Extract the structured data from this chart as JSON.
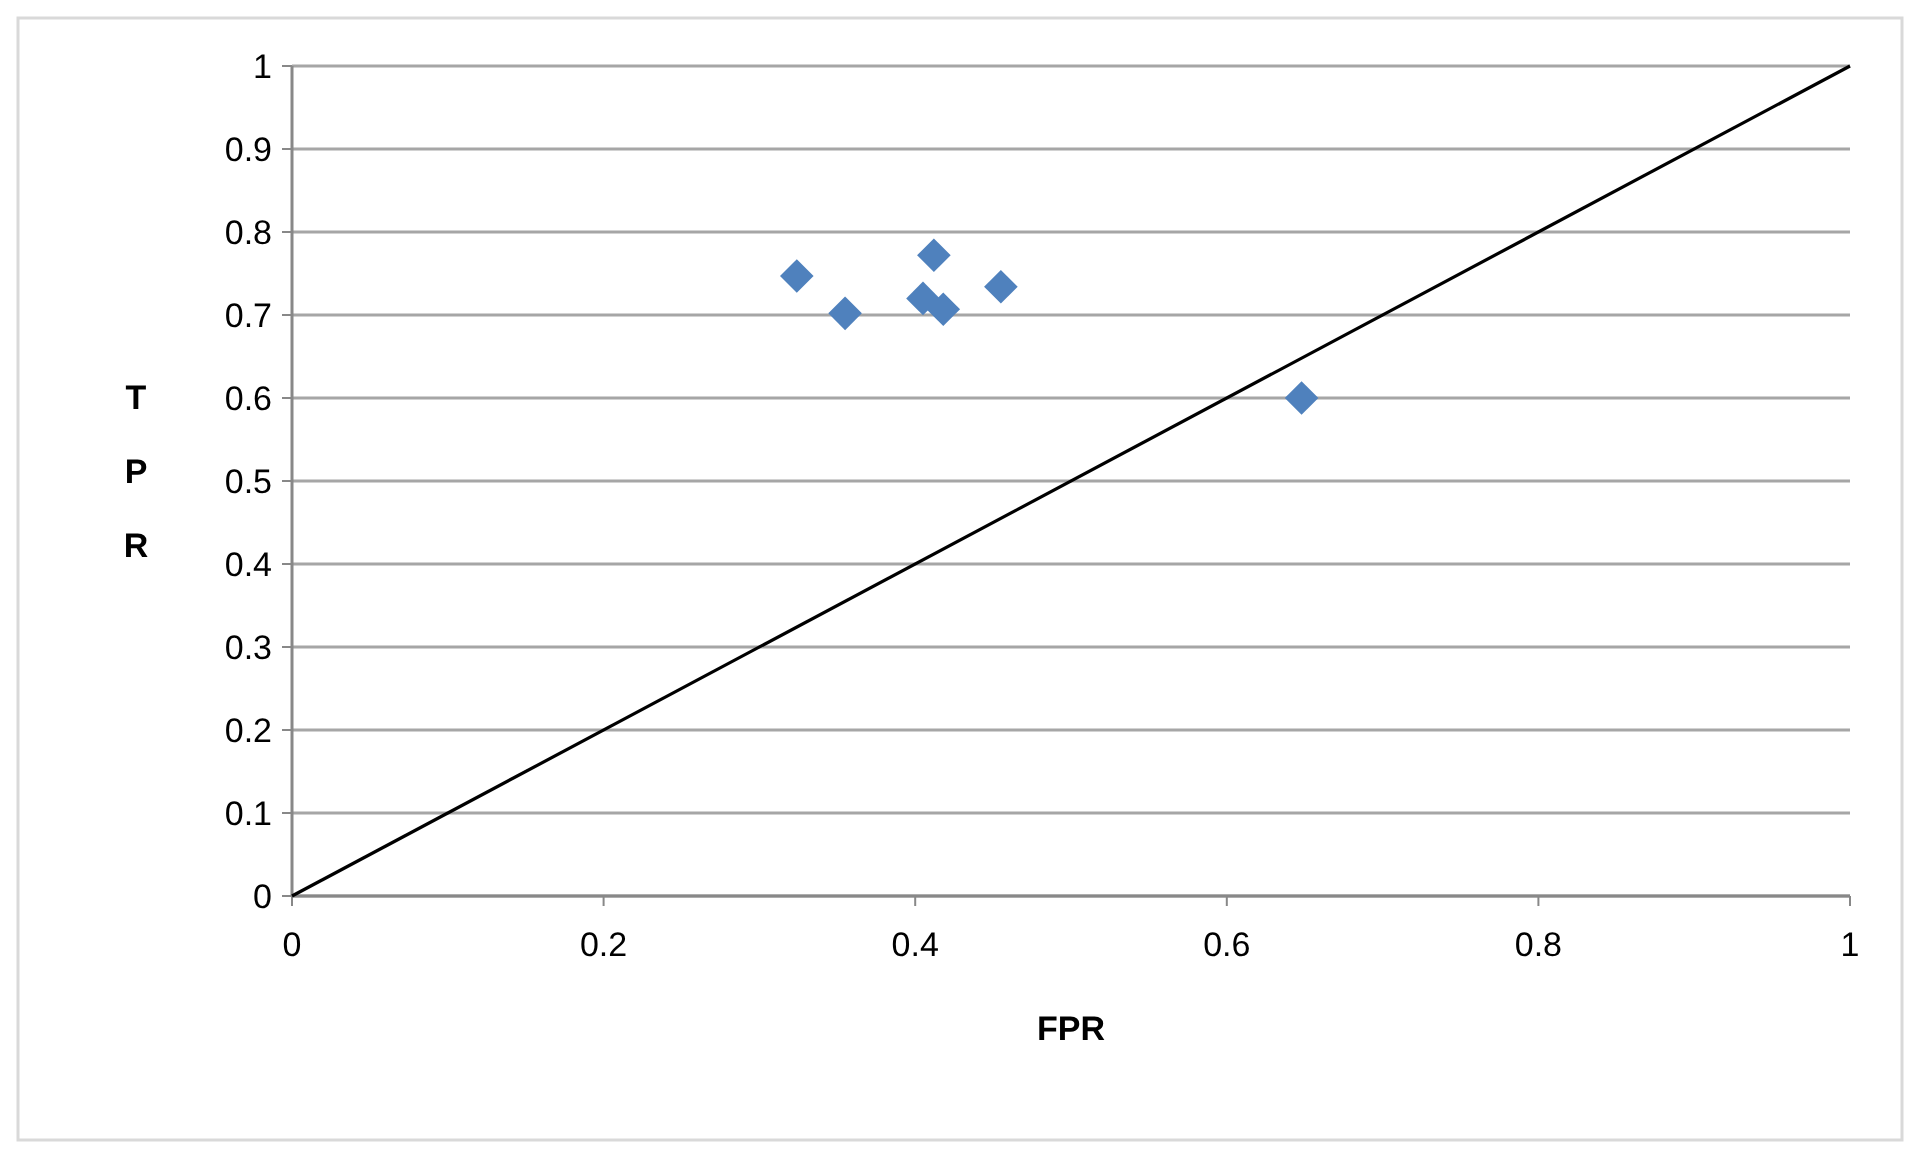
{
  "chart_data": {
    "type": "scatter",
    "xlabel": "FPR",
    "ylabel": "TPR",
    "xlim": [
      0,
      1
    ],
    "ylim": [
      0,
      1
    ],
    "xticks": [
      0,
      0.2,
      0.4,
      0.6,
      0.8,
      1
    ],
    "yticks": [
      0,
      0.1,
      0.2,
      0.3,
      0.4,
      0.5,
      0.6,
      0.7,
      0.8,
      0.9,
      1
    ],
    "grid": "y",
    "marker": "diamond",
    "series": [
      {
        "color": "#4f81bd",
        "x": [
          0.324,
          0.355,
          0.405,
          0.418,
          0.412,
          0.455,
          0.648
        ],
        "values": [
          0.747,
          0.702,
          0.72,
          0.707,
          0.772,
          0.734,
          0.6
        ]
      },
      {
        "type": "line",
        "color": "#000000",
        "marker": "none",
        "x": [
          0,
          1
        ],
        "values": [
          0,
          1
        ]
      }
    ]
  }
}
